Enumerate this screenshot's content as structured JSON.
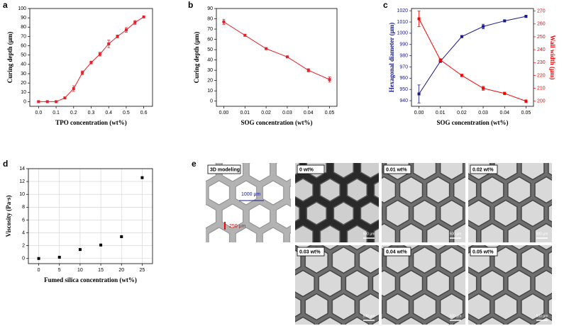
{
  "chart_data": [
    {
      "type": "line",
      "panel": "a",
      "xlabel": "TPO concentration (wt%)",
      "ylabel": "Curing depth (μm)",
      "x": [
        0,
        0.05,
        0.1,
        0.15,
        0.2,
        0.25,
        0.3,
        0.35,
        0.4,
        0.45,
        0.5,
        0.55,
        0.6
      ],
      "series": [
        {
          "color": "#e8202a",
          "values": [
            0,
            0,
            0,
            4,
            14,
            31,
            42,
            51,
            62,
            70,
            77,
            85,
            91
          ],
          "errors": [
            0.5,
            0.5,
            0.5,
            1,
            3,
            2,
            1.5,
            2,
            4,
            1.5,
            2.5,
            2,
            1
          ]
        }
      ],
      "xlim": [
        -0.05,
        0.65
      ],
      "ylim": [
        -5,
        100
      ],
      "xticks": [
        {
          "value": 0,
          "label": "0.0"
        },
        0.1,
        0.2,
        0.3,
        0.4,
        0.5,
        0.6
      ],
      "yticks": [
        0,
        10,
        20,
        30,
        40,
        50,
        60,
        70,
        80,
        90,
        100
      ],
      "grid": false
    },
    {
      "type": "line",
      "panel": "b",
      "xlabel": "SOG concentration (wt%)",
      "ylabel": "Curing depth (μm)",
      "x": [
        0,
        0.01,
        0.02,
        0.03,
        0.04,
        0.05
      ],
      "series": [
        {
          "color": "#e8202a",
          "values": [
            77,
            64,
            51,
            43,
            30,
            21
          ],
          "errors": [
            2.5,
            1,
            1,
            0.5,
            1.5,
            2.5
          ]
        }
      ],
      "xlim": [
        -0.0035,
        0.0535
      ],
      "ylim": [
        -5,
        90
      ],
      "xticks": [
        {
          "value": 0,
          "label": "0.00"
        },
        0.01,
        0.02,
        0.03,
        0.04,
        0.05
      ],
      "yticks": [
        0,
        10,
        20,
        30,
        40,
        50,
        60,
        70,
        80,
        90
      ],
      "grid": false
    },
    {
      "type": "line",
      "panel": "c",
      "xlabel": "SOG concentration (wt%)",
      "ylabel": "Hexagonal diameter (μm)",
      "y2label": "Wall width (μm)",
      "x": [
        0,
        0.01,
        0.02,
        0.03,
        0.04,
        0.05
      ],
      "series": [
        {
          "color": "#1a1a8c",
          "values": [
            946,
            975,
            997,
            1006,
            1011,
            1015
          ],
          "errors": [
            8,
            1,
            1,
            2,
            1,
            1
          ]
        },
        {
          "color": "#ff0000",
          "axis": "y2",
          "values": [
            264,
            232,
            220,
            210,
            206,
            200
          ],
          "errors": [
            6,
            1,
            1,
            1.5,
            1,
            1
          ]
        }
      ],
      "xlim": [
        -0.0035,
        0.0535
      ],
      "ylim": [
        935,
        1022
      ],
      "y2lim": [
        196,
        272
      ],
      "xticks": [
        {
          "value": 0,
          "label": "0.00"
        },
        0.01,
        0.02,
        0.03,
        0.04,
        0.05
      ],
      "yticks": [
        940,
        950,
        960,
        970,
        980,
        990,
        1000,
        1010,
        1020
      ],
      "y2ticks": [
        200,
        210,
        220,
        230,
        240,
        250,
        260,
        270
      ],
      "grid": false
    },
    {
      "type": "scatter",
      "panel": "d",
      "xlabel": "Fumed silica concentration (wt%)",
      "ylabel": "Viscosity (Pa·s)",
      "x": [
        0,
        5,
        10,
        15,
        20,
        25
      ],
      "series": [
        {
          "color": "#000000",
          "values": [
            0,
            0.2,
            1.4,
            2.1,
            3.4,
            12.6
          ]
        }
      ],
      "xlim": [
        -2.5,
        27.5
      ],
      "ylim": [
        -0.8,
        14
      ],
      "xticks": [
        0,
        5,
        10,
        15,
        20,
        25
      ],
      "yticks": [
        0,
        2,
        4,
        6,
        8,
        10,
        12,
        14
      ],
      "grid": true
    }
  ],
  "panel_e": {
    "label": "e",
    "model_label": "3D modeling",
    "diameter": "1000 μm",
    "wall": "250 μm",
    "images": [
      {
        "label": "0 wt%",
        "scale": "500 μm"
      },
      {
        "label": "0.01 wt%",
        "scale": "500 μm"
      },
      {
        "label": "0.02 wt%",
        "scale": "500 μm"
      },
      {
        "label": "0.03 wt%",
        "scale": "500 μm"
      },
      {
        "label": "0.04 wt%",
        "scale": "500 μm"
      },
      {
        "label": "0.05 wt%",
        "scale": "500 μm"
      }
    ]
  }
}
